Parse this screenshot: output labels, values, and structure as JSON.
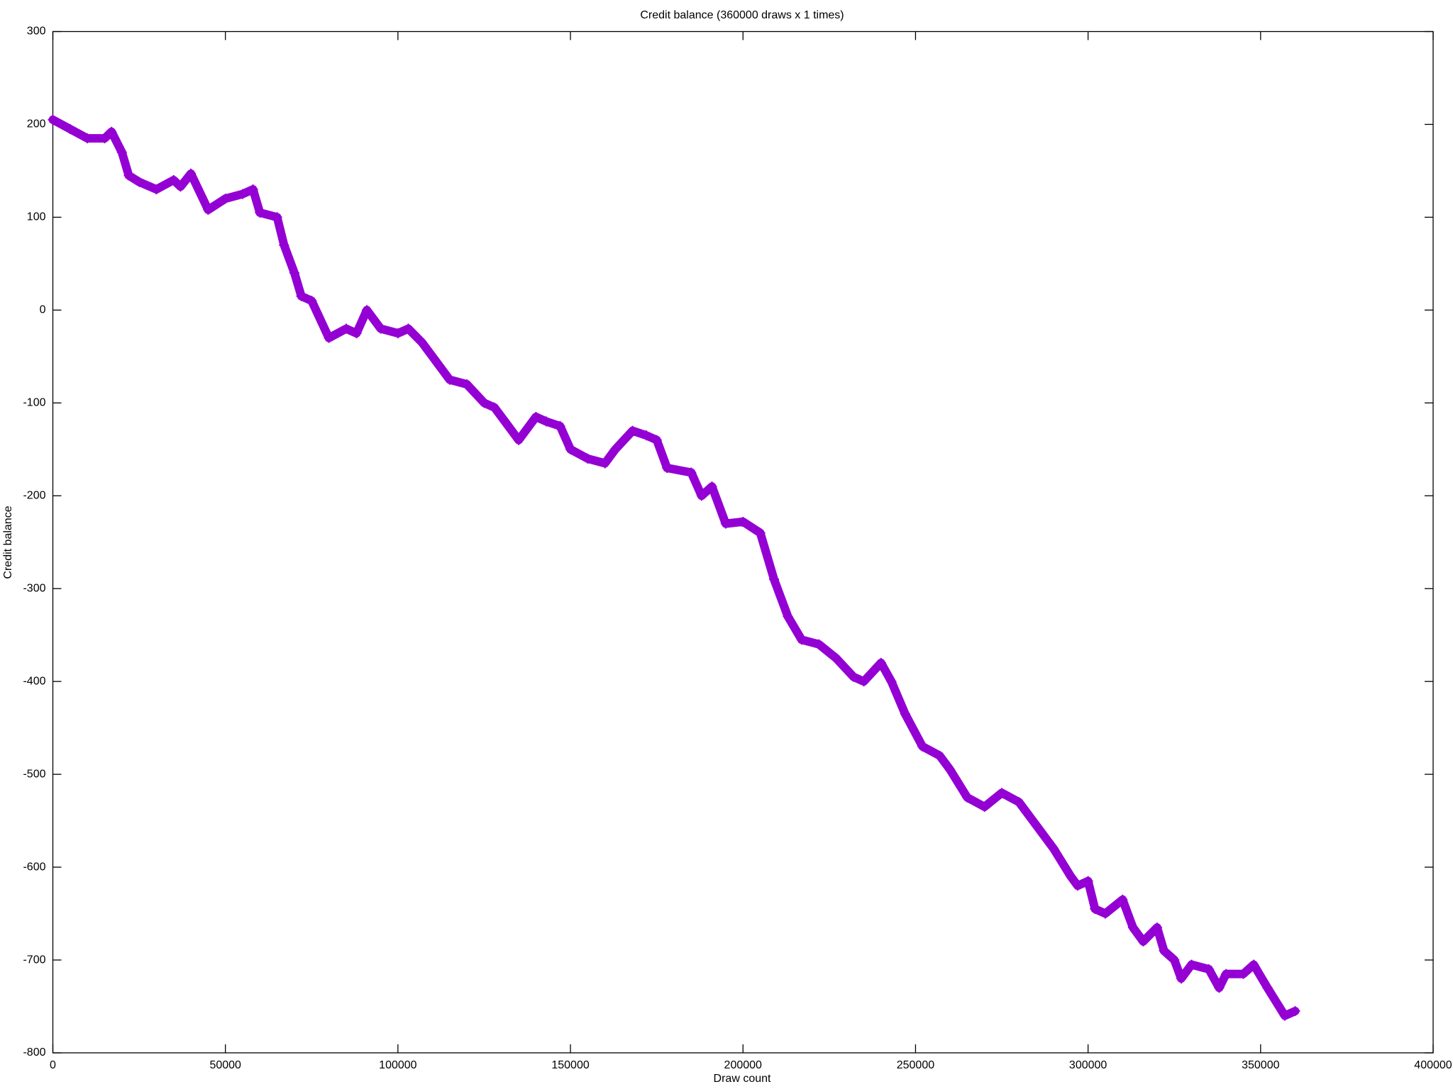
{
  "chart_data": {
    "type": "line",
    "title": "Credit balance (360000 draws x 1 times)",
    "x_label": "Draw count",
    "y_label": "Credit balance",
    "x": [
      0,
      5000,
      10000,
      15000,
      17000,
      20000,
      22000,
      25000,
      30000,
      35000,
      37000,
      40000,
      45000,
      50000,
      55000,
      58000,
      60000,
      65000,
      67000,
      70000,
      72000,
      75000,
      80000,
      85000,
      88000,
      91000,
      95000,
      100000,
      103000,
      107000,
      112000,
      115000,
      120000,
      125000,
      128000,
      131000,
      135000,
      140000,
      143000,
      147000,
      150000,
      155000,
      160000,
      163000,
      168000,
      172000,
      175000,
      178000,
      185000,
      188000,
      191000,
      195000,
      200000,
      205000,
      209000,
      213000,
      217000,
      222000,
      227000,
      232000,
      235000,
      240000,
      243000,
      247000,
      252000,
      257000,
      260000,
      265000,
      270000,
      275000,
      280000,
      285000,
      290000,
      295000,
      297000,
      300000,
      302000,
      305000,
      310000,
      313000,
      316000,
      320000,
      322000,
      325000,
      327000,
      330000,
      335000,
      338000,
      340000,
      345000,
      348000,
      352000,
      357000,
      360000
    ],
    "series": [
      {
        "name": "Credit balance",
        "color": "#9400d3",
        "values": [
          205,
          195,
          185,
          185,
          192,
          170,
          145,
          138,
          130,
          140,
          133,
          147,
          108,
          120,
          125,
          130,
          105,
          100,
          70,
          40,
          15,
          10,
          -30,
          -20,
          -25,
          0,
          -20,
          -25,
          -20,
          -35,
          -60,
          -75,
          -80,
          -100,
          -105,
          -120,
          -140,
          -115,
          -120,
          -125,
          -150,
          -160,
          -165,
          -150,
          -130,
          -135,
          -140,
          -170,
          -175,
          -200,
          -190,
          -230,
          -228,
          -240,
          -290,
          -330,
          -355,
          -360,
          -375,
          -395,
          -400,
          -380,
          -400,
          -435,
          -470,
          -480,
          -495,
          -525,
          -535,
          -520,
          -530,
          -555,
          -580,
          -610,
          -620,
          -615,
          -645,
          -650,
          -635,
          -665,
          -680,
          -665,
          -690,
          -700,
          -720,
          -705,
          -710,
          -730,
          -715,
          -715,
          -705,
          -730,
          -760,
          -755
        ]
      }
    ],
    "xlim": [
      0,
      400000
    ],
    "xticks": [
      0,
      50000,
      100000,
      150000,
      200000,
      250000,
      300000,
      350000,
      400000
    ],
    "ylim": [
      -800,
      300
    ],
    "yticks": [
      -800,
      -700,
      -600,
      -500,
      -400,
      -300,
      -200,
      -100,
      0,
      100,
      200,
      300
    ],
    "grid": false
  }
}
